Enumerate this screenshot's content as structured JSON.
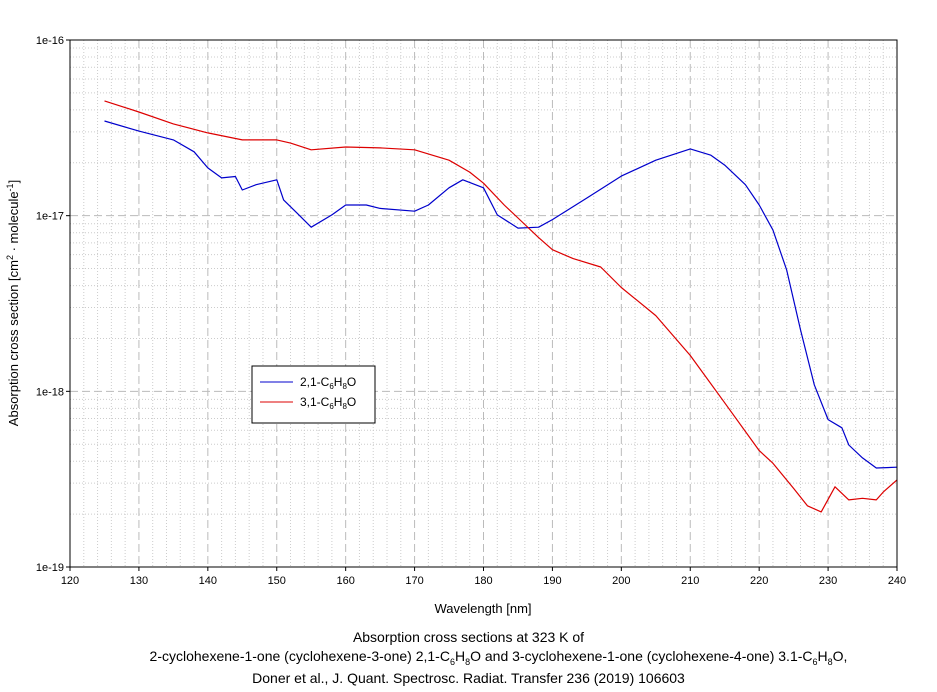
{
  "chart_data": {
    "type": "line",
    "title": [
      "Absorption cross sections at 323 K of",
      "2-cyclohexene-1-one (cyclohexene-3-one) 2,1-C6H8O and 3-cyclohexene-1-one (cyclohexene-4-one) 3.1-C6H8O,",
      "Doner et al., J. Quant. Spectrosc. Radiat. Transfer 236 (2019) 106603"
    ],
    "xlabel": "Wavelength [nm]",
    "ylabel": "Absorption cross section [cm2 · molecule-1]",
    "xlim": [
      120,
      240
    ],
    "ylim": [
      1e-19,
      1e-16
    ],
    "yscale": "log",
    "grid": true,
    "legend_position": "center-left",
    "x_ticks": [
      "120",
      "130",
      "140",
      "150",
      "160",
      "170",
      "180",
      "190",
      "200",
      "210",
      "220",
      "230",
      "240"
    ],
    "y_ticks": [
      "1e-19",
      "1e-18",
      "1e-17",
      "1e-16"
    ],
    "series": [
      {
        "name": "2,1-C6H8O",
        "color": "#0000cc",
        "x": [
          125,
          130,
          135,
          138,
          140,
          142,
          144,
          145,
          147,
          150,
          151,
          153,
          155,
          158,
          160,
          163,
          165,
          170,
          172,
          175,
          177,
          180,
          182,
          185,
          188,
          190,
          195,
          200,
          205,
          210,
          213,
          215,
          218,
          220,
          222,
          224,
          226,
          228,
          230,
          232,
          233,
          235,
          237,
          240
        ],
        "y": [
          3.46e-17,
          3.03e-17,
          2.7e-17,
          2.31e-17,
          1.87e-17,
          1.64e-17,
          1.67e-17,
          1.4e-17,
          1.5e-17,
          1.6e-17,
          1.23e-17,
          1.03e-17,
          8.6e-18,
          1.01e-17,
          1.15e-17,
          1.15e-17,
          1.1e-17,
          1.06e-17,
          1.15e-17,
          1.44e-17,
          1.6e-17,
          1.44e-17,
          1.01e-17,
          8.5e-18,
          8.6e-18,
          9.5e-18,
          1.26e-17,
          1.68e-17,
          2.07e-17,
          2.4e-17,
          2.21e-17,
          1.94e-17,
          1.5e-17,
          1.15e-17,
          8.3e-18,
          4.9e-18,
          2.24e-18,
          1.09e-18,
          6.9e-19,
          6.2e-19,
          4.95e-19,
          4.18e-19,
          3.66e-19,
          3.7e-19
        ]
      },
      {
        "name": "3,1-C6H8O",
        "color": "#dd0000",
        "x": [
          125,
          130,
          135,
          140,
          145,
          150,
          152,
          155,
          160,
          165,
          170,
          175,
          178,
          180,
          183,
          185,
          188,
          190,
          193,
          197,
          200,
          205,
          210,
          215,
          220,
          222,
          225,
          227,
          229,
          231,
          233,
          235,
          237,
          238,
          240
        ],
        "y": [
          4.5e-17,
          3.89e-17,
          3.33e-17,
          2.96e-17,
          2.7e-17,
          2.7e-17,
          2.59e-17,
          2.37e-17,
          2.46e-17,
          2.43e-17,
          2.37e-17,
          2.07e-17,
          1.77e-17,
          1.53e-17,
          1.15e-17,
          9.7e-18,
          7.5e-18,
          6.4e-18,
          5.7e-18,
          5.1e-18,
          3.9e-18,
          2.7e-18,
          1.6e-18,
          8.6e-19,
          4.6e-19,
          3.9e-19,
          2.8e-19,
          2.23e-19,
          2.06e-19,
          2.86e-19,
          2.41e-19,
          2.46e-19,
          2.41e-19,
          2.67e-19,
          3.13e-19
        ]
      }
    ]
  },
  "legend": {
    "s1_base": "2,1-C",
    "s1_a": "6",
    "s1_b": "H",
    "s1_c": "8",
    "s1_d": "O",
    "s2_base": "3,1-C"
  },
  "labels": {
    "ylabel_main": "Absorption cross section [cm",
    "ylabel_sup1": "2",
    "ylabel_mid": " · molecule",
    "ylabel_sup2": "-1",
    "ylabel_end": "]"
  },
  "caption": {
    "line1": "Absorption cross sections at 323 K of",
    "line2_a": "2-cyclohexene-1-one (cyclohexene-3-one) 2,1-C",
    "line2_b": "6",
    "line2_c": "H",
    "line2_d": "8",
    "line2_e": "O and 3-cyclohexene-1-one (cyclohexene-4-one) 3.1-C",
    "line2_f": "6",
    "line2_g": "H",
    "line2_h": "8",
    "line2_i": "O,",
    "line3": "Doner et al., J. Quant. Spectrosc. Radiat. Transfer 236 (2019) 106603"
  }
}
